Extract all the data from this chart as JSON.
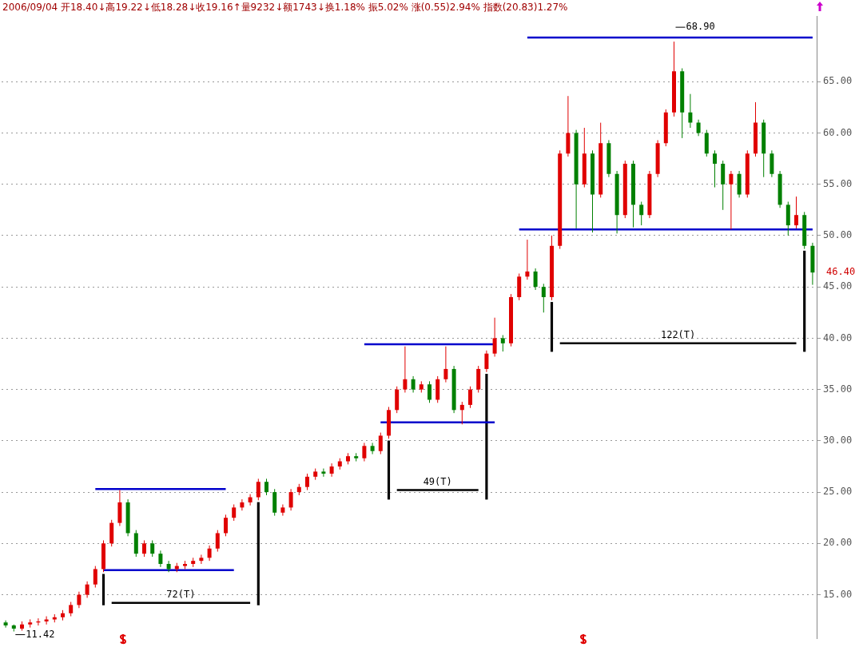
{
  "chart_data": {
    "type": "candlestick",
    "categories": [
      null,
      null,
      null,
      null,
      null,
      null,
      null,
      null,
      null,
      null,
      null,
      null,
      null,
      null,
      null,
      null,
      null,
      null,
      null,
      null,
      null,
      null,
      null,
      null,
      null,
      null,
      null,
      null,
      null,
      null,
      null,
      null,
      null,
      null,
      null,
      null,
      null,
      null,
      null,
      null,
      null,
      null,
      null,
      null,
      null,
      null,
      null,
      null,
      null,
      null,
      null,
      null,
      null,
      null,
      null,
      null,
      null,
      null,
      null,
      null,
      null,
      null,
      null,
      null,
      null,
      null,
      null,
      null,
      null,
      null,
      null,
      null,
      null,
      null,
      null,
      null,
      null,
      null,
      null,
      null,
      null,
      null,
      null,
      null,
      null,
      null,
      null,
      null,
      null,
      null,
      null,
      null,
      null,
      null,
      null,
      null,
      null,
      null,
      null,
      null
    ],
    "ohlc": [
      [
        12.3,
        12.5,
        11.8,
        12.0
      ],
      [
        12.0,
        12.1,
        11.42,
        11.7
      ],
      [
        11.7,
        12.4,
        11.5,
        12.1
      ],
      [
        12.1,
        12.6,
        11.8,
        12.3
      ],
      [
        12.3,
        12.7,
        12.0,
        12.4
      ],
      [
        12.4,
        12.9,
        12.1,
        12.6
      ],
      [
        12.6,
        13.1,
        12.3,
        12.8
      ],
      [
        12.8,
        13.5,
        12.5,
        13.2
      ],
      [
        13.2,
        14.3,
        12.9,
        14.0
      ],
      [
        14.0,
        15.3,
        13.7,
        15.0
      ],
      [
        15.0,
        16.3,
        14.7,
        16.0
      ],
      [
        16.0,
        17.8,
        15.7,
        17.5
      ],
      [
        17.5,
        20.3,
        17.2,
        20.0
      ],
      [
        20.0,
        22.3,
        19.7,
        22.0
      ],
      [
        22.0,
        25.2,
        21.7,
        24.0
      ],
      [
        24.0,
        24.3,
        20.7,
        21.0
      ],
      [
        21.0,
        21.3,
        18.7,
        19.0
      ],
      [
        19.0,
        20.3,
        18.7,
        20.0
      ],
      [
        20.0,
        20.3,
        18.7,
        19.0
      ],
      [
        19.0,
        19.3,
        17.7,
        18.0
      ],
      [
        18.0,
        18.3,
        17.2,
        17.5
      ],
      [
        17.5,
        18.1,
        17.2,
        17.8
      ],
      [
        17.8,
        18.3,
        17.5,
        18.0
      ],
      [
        18.0,
        18.6,
        17.7,
        18.3
      ],
      [
        18.3,
        18.9,
        18.0,
        18.6
      ],
      [
        18.6,
        19.8,
        18.3,
        19.5
      ],
      [
        19.5,
        21.3,
        19.2,
        21.0
      ],
      [
        21.0,
        22.8,
        20.7,
        22.5
      ],
      [
        22.5,
        23.8,
        22.2,
        23.5
      ],
      [
        23.5,
        24.3,
        23.2,
        24.0
      ],
      [
        24.0,
        24.8,
        23.7,
        24.5
      ],
      [
        24.5,
        26.3,
        24.2,
        26.0
      ],
      [
        26.0,
        26.3,
        24.7,
        25.0
      ],
      [
        25.0,
        25.3,
        22.7,
        23.0
      ],
      [
        23.0,
        23.8,
        22.7,
        23.5
      ],
      [
        23.5,
        25.3,
        23.2,
        25.0
      ],
      [
        25.0,
        25.8,
        24.7,
        25.5
      ],
      [
        25.5,
        26.8,
        25.2,
        26.5
      ],
      [
        26.5,
        27.3,
        26.2,
        27.0
      ],
      [
        27.0,
        27.3,
        26.5,
        26.8
      ],
      [
        26.8,
        27.8,
        26.5,
        27.5
      ],
      [
        27.5,
        28.3,
        27.2,
        28.0
      ],
      [
        28.0,
        28.8,
        27.7,
        28.5
      ],
      [
        28.5,
        28.8,
        28.0,
        28.3
      ],
      [
        28.3,
        29.8,
        28.0,
        29.5
      ],
      [
        29.5,
        29.8,
        28.7,
        29.0
      ],
      [
        29.0,
        30.8,
        28.7,
        30.5
      ],
      [
        30.5,
        33.3,
        30.2,
        33.0
      ],
      [
        33.0,
        35.3,
        32.7,
        35.0
      ],
      [
        35.0,
        39.2,
        34.7,
        36.0
      ],
      [
        36.0,
        36.3,
        34.7,
        35.0
      ],
      [
        35.0,
        35.8,
        34.7,
        35.5
      ],
      [
        35.5,
        35.8,
        33.7,
        34.0
      ],
      [
        34.0,
        36.3,
        33.7,
        36.0
      ],
      [
        36.0,
        39.2,
        35.7,
        37.0
      ],
      [
        37.0,
        37.3,
        32.7,
        33.0
      ],
      [
        33.0,
        33.8,
        31.6,
        33.5
      ],
      [
        33.5,
        35.3,
        33.2,
        35.0
      ],
      [
        35.0,
        37.3,
        34.7,
        37.0
      ],
      [
        37.0,
        38.8,
        36.7,
        38.5
      ],
      [
        38.5,
        42.0,
        38.2,
        40.0
      ],
      [
        40.0,
        40.3,
        38.7,
        39.5
      ],
      [
        39.5,
        44.3,
        39.2,
        44.0
      ],
      [
        44.0,
        46.3,
        43.7,
        46.0
      ],
      [
        46.0,
        49.6,
        45.7,
        46.5
      ],
      [
        46.5,
        46.8,
        44.7,
        45.0
      ],
      [
        45.0,
        45.3,
        42.5,
        44.0
      ],
      [
        44.0,
        50.0,
        43.7,
        49.0
      ],
      [
        49.0,
        58.3,
        48.7,
        58.0
      ],
      [
        58.0,
        63.6,
        57.7,
        60.0
      ],
      [
        60.0,
        60.3,
        50.7,
        55.0
      ],
      [
        55.0,
        60.5,
        54.7,
        58.0
      ],
      [
        58.0,
        58.3,
        50.3,
        54.0
      ],
      [
        54.0,
        61.0,
        53.7,
        59.0
      ],
      [
        59.0,
        59.3,
        55.7,
        56.0
      ],
      [
        56.0,
        56.3,
        50.2,
        52.0
      ],
      [
        52.0,
        57.3,
        51.7,
        57.0
      ],
      [
        57.0,
        57.3,
        50.8,
        53.0
      ],
      [
        53.0,
        53.3,
        51.0,
        52.0
      ],
      [
        52.0,
        56.3,
        51.7,
        56.0
      ],
      [
        56.0,
        59.3,
        55.7,
        59.0
      ],
      [
        59.0,
        62.3,
        58.7,
        62.0
      ],
      [
        62.0,
        68.9,
        61.6,
        66.0
      ],
      [
        66.0,
        66.3,
        59.5,
        62.0
      ],
      [
        62.0,
        63.8,
        60.5,
        61.0
      ],
      [
        61.0,
        61.3,
        59.7,
        60.0
      ],
      [
        60.0,
        60.3,
        57.7,
        58.0
      ],
      [
        58.0,
        58.3,
        54.7,
        57.0
      ],
      [
        57.0,
        57.3,
        52.5,
        55.0
      ],
      [
        55.0,
        56.3,
        50.6,
        56.0
      ],
      [
        56.0,
        56.3,
        53.7,
        54.0
      ],
      [
        54.0,
        58.3,
        53.7,
        58.0
      ],
      [
        58.0,
        63.0,
        57.7,
        61.0
      ],
      [
        61.0,
        61.3,
        55.7,
        58.0
      ],
      [
        58.0,
        58.3,
        55.7,
        56.0
      ],
      [
        56.0,
        56.3,
        52.7,
        53.0
      ],
      [
        53.0,
        53.3,
        50.0,
        51.0
      ],
      [
        51.0,
        53.8,
        50.7,
        52.0
      ],
      [
        52.0,
        52.3,
        48.7,
        49.0
      ],
      [
        49.0,
        49.3,
        45.2,
        46.4
      ]
    ],
    "colors": [
      "#008000",
      "#008000",
      "#e00000",
      "#e00000",
      "#e00000",
      "#e00000",
      "#e00000",
      "#e00000",
      "#e00000",
      "#e00000",
      "#e00000",
      "#e00000",
      "#e00000",
      "#e00000",
      "#e00000",
      "#008000",
      "#008000",
      "#e00000",
      "#008000",
      "#008000",
      "#008000",
      "#e00000",
      "#e00000",
      "#e00000",
      "#e00000",
      "#e00000",
      "#e00000",
      "#e00000",
      "#e00000",
      "#e00000",
      "#e00000",
      "#e00000",
      "#008000",
      "#008000",
      "#e00000",
      "#e00000",
      "#e00000",
      "#e00000",
      "#e00000",
      "#008000",
      "#e00000",
      "#e00000",
      "#e00000",
      "#008000",
      "#e00000",
      "#008000",
      "#e00000",
      "#e00000",
      "#e00000",
      "#e00000",
      "#008000",
      "#e00000",
      "#008000",
      "#e00000",
      "#e00000",
      "#008000",
      "#e00000",
      "#e00000",
      "#e00000",
      "#e00000",
      "#e00000",
      "#008000",
      "#e00000",
      "#e00000",
      "#e00000",
      "#008000",
      "#008000",
      "#e00000",
      "#e00000",
      "#e00000",
      "#008000",
      "#e00000",
      "#008000",
      "#e00000",
      "#008000",
      "#008000",
      "#e00000",
      "#008000",
      "#008000",
      "#e00000",
      "#e00000",
      "#e00000",
      "#e00000",
      "#008000",
      "#008000",
      "#008000",
      "#008000",
      "#008000",
      "#008000",
      "#e00000",
      "#008000",
      "#e00000",
      "#e00000",
      "#008000",
      "#008000",
      "#008000",
      "#008000",
      "#e00000",
      "#008000",
      "#008000"
    ],
    "series": [
      {
        "type": "line",
        "color": "#0000cc",
        "values": [
          null,
          null,
          null,
          null,
          null,
          null,
          null,
          null,
          null,
          null,
          null,
          25.3,
          25.3,
          25.3,
          25.3,
          25.3,
          25.3,
          25.3,
          25.3,
          25.3,
          25.3,
          25.3,
          25.3,
          25.3,
          25.3,
          25.3,
          25.3,
          25.3,
          null,
          null,
          null,
          null,
          null,
          null,
          null,
          null,
          null,
          null,
          null,
          null,
          null,
          null,
          null,
          null,
          39.4,
          39.4,
          39.4,
          39.4,
          39.4,
          39.4,
          39.4,
          39.4,
          39.4,
          39.4,
          39.4,
          39.4,
          39.4,
          39.4,
          39.4,
          39.4,
          39.4,
          null,
          null,
          null,
          69.3,
          69.3,
          69.3,
          69.3,
          69.3,
          69.3,
          69.3,
          69.3,
          69.3,
          69.3,
          69.3,
          69.3,
          69.3,
          69.3,
          69.3,
          69.3,
          69.3,
          69.3,
          69.3,
          69.3,
          69.3,
          69.3,
          69.3,
          69.3,
          69.3,
          69.3,
          69.3,
          69.3,
          69.3,
          69.3,
          69.3,
          69.3,
          69.3,
          69.3,
          69.3,
          69.3
        ]
      },
      {
        "type": "line",
        "color": "#0000cc",
        "values": [
          null,
          null,
          null,
          null,
          null,
          null,
          null,
          null,
          null,
          null,
          null,
          null,
          17.4,
          17.4,
          17.4,
          17.4,
          17.4,
          17.4,
          17.4,
          17.4,
          17.4,
          17.4,
          17.4,
          17.4,
          17.4,
          17.4,
          17.4,
          17.4,
          17.4,
          null,
          null,
          null,
          null,
          null,
          null,
          null,
          null,
          null,
          null,
          null,
          null,
          null,
          null,
          null,
          null,
          null,
          31.8,
          31.8,
          31.8,
          31.8,
          31.8,
          31.8,
          31.8,
          31.8,
          31.8,
          31.8,
          31.8,
          31.8,
          31.8,
          31.8,
          31.8,
          null,
          null,
          50.6,
          50.6,
          50.6,
          50.6,
          50.6,
          50.6,
          50.6,
          50.6,
          50.6,
          50.6,
          50.6,
          50.6,
          50.6,
          50.6,
          50.6,
          50.6,
          50.6,
          50.6,
          50.6,
          50.6,
          50.6,
          50.6,
          50.6,
          50.6,
          50.6,
          50.6,
          50.6,
          50.6,
          50.6,
          50.6,
          50.6,
          50.6,
          50.6,
          50.6,
          50.6,
          50.6,
          50.6
        ]
      },
      {
        "type": "line",
        "color": "#000000",
        "values": [
          null,
          null,
          null,
          null,
          null,
          null,
          null,
          null,
          null,
          null,
          null,
          null,
          null,
          14.2,
          14.2,
          14.2,
          14.2,
          14.2,
          14.2,
          14.2,
          14.2,
          14.2,
          14.2,
          14.2,
          14.2,
          14.2,
          14.2,
          14.2,
          14.2,
          14.2,
          14.2,
          null,
          null,
          null,
          null,
          null,
          null,
          null,
          null,
          null,
          null,
          null,
          null,
          null,
          null,
          null,
          null,
          null,
          25.2,
          25.2,
          25.2,
          25.2,
          25.2,
          25.2,
          25.2,
          25.2,
          25.2,
          25.2,
          25.2,
          null,
          null,
          null,
          null,
          null,
          null,
          null,
          null,
          null,
          39.5,
          39.5,
          39.5,
          39.5,
          39.5,
          39.5,
          39.5,
          39.5,
          39.5,
          39.5,
          39.5,
          39.5,
          39.5,
          39.5,
          39.5,
          39.5,
          39.5,
          39.5,
          39.5,
          39.5,
          39.5,
          39.5,
          39.5,
          39.5,
          39.5,
          39.5,
          39.5,
          39.5,
          39.5,
          39.5,
          null,
          null
        ]
      },
      {
        "type": "bar",
        "color": "#000000",
        "base": [
          null,
          null,
          null,
          null,
          null,
          null,
          null,
          null,
          null,
          null,
          null,
          null,
          14.0,
          null,
          null,
          null,
          null,
          null,
          null,
          null,
          null,
          null,
          null,
          null,
          null,
          null,
          null,
          null,
          null,
          null,
          null,
          14.0,
          null,
          null,
          null,
          null,
          null,
          null,
          null,
          null,
          null,
          null,
          null,
          null,
          null,
          null,
          null,
          24.3,
          null,
          null,
          null,
          null,
          null,
          null,
          null,
          null,
          null,
          null,
          null,
          24.3,
          null,
          null,
          null,
          null,
          null,
          null,
          null,
          38.7,
          null,
          null,
          null,
          null,
          null,
          null,
          null,
          null,
          null,
          null,
          null,
          null,
          null,
          null,
          null,
          null,
          null,
          null,
          null,
          null,
          null,
          null,
          null,
          null,
          null,
          null,
          null,
          null,
          null,
          null,
          38.7,
          null
        ],
        "values": [
          null,
          null,
          null,
          null,
          null,
          null,
          null,
          null,
          null,
          null,
          null,
          null,
          3.0,
          null,
          null,
          null,
          null,
          null,
          null,
          null,
          null,
          null,
          null,
          null,
          null,
          null,
          null,
          null,
          null,
          null,
          null,
          10.0,
          null,
          null,
          null,
          null,
          null,
          null,
          null,
          null,
          null,
          null,
          null,
          null,
          null,
          null,
          null,
          5.7,
          null,
          null,
          null,
          null,
          null,
          null,
          null,
          null,
          null,
          null,
          null,
          12.2,
          null,
          null,
          null,
          null,
          null,
          null,
          null,
          4.8,
          null,
          null,
          null,
          null,
          null,
          null,
          null,
          null,
          null,
          null,
          null,
          null,
          null,
          null,
          null,
          null,
          null,
          null,
          null,
          null,
          null,
          null,
          null,
          null,
          null,
          null,
          null,
          null,
          null,
          null,
          9.8,
          null
        ]
      }
    ],
    "ylim": [
      10.7,
      71.4
    ],
    "yticks": [
      {
        "value": 15,
        "label": "15.00"
      },
      {
        "value": 20,
        "label": "20.00"
      },
      {
        "value": 25,
        "label": "25.00"
      },
      {
        "value": 30,
        "label": "30.00"
      },
      {
        "value": 35,
        "label": "35.00"
      },
      {
        "value": 40,
        "label": "40.00"
      },
      {
        "value": 45,
        "label": "45.00"
      },
      {
        "value": 50,
        "label": "50.00"
      },
      {
        "value": 55,
        "label": "55.00"
      },
      {
        "value": 60,
        "label": "60.00"
      },
      {
        "value": 65,
        "label": "65.00"
      }
    ],
    "grid": "y",
    "legend": false,
    "tick_labels": "y",
    "annotations": [
      "2006/09/04 开18.40↓高19.22↓低18.28↓收19.16↑量9232↓额1743↓换1.18% 振5.02% 涨(0.55)2.94% 指数(20.83)1.27%",
      "68.90",
      "11.42",
      "46.40",
      {
        "text": "72(T)",
        "y": 14.2
      },
      {
        "text": "49(T)",
        "y": 25.2
      },
      {
        "text": "122(T)",
        "y": 39.5
      }
    ]
  }
}
